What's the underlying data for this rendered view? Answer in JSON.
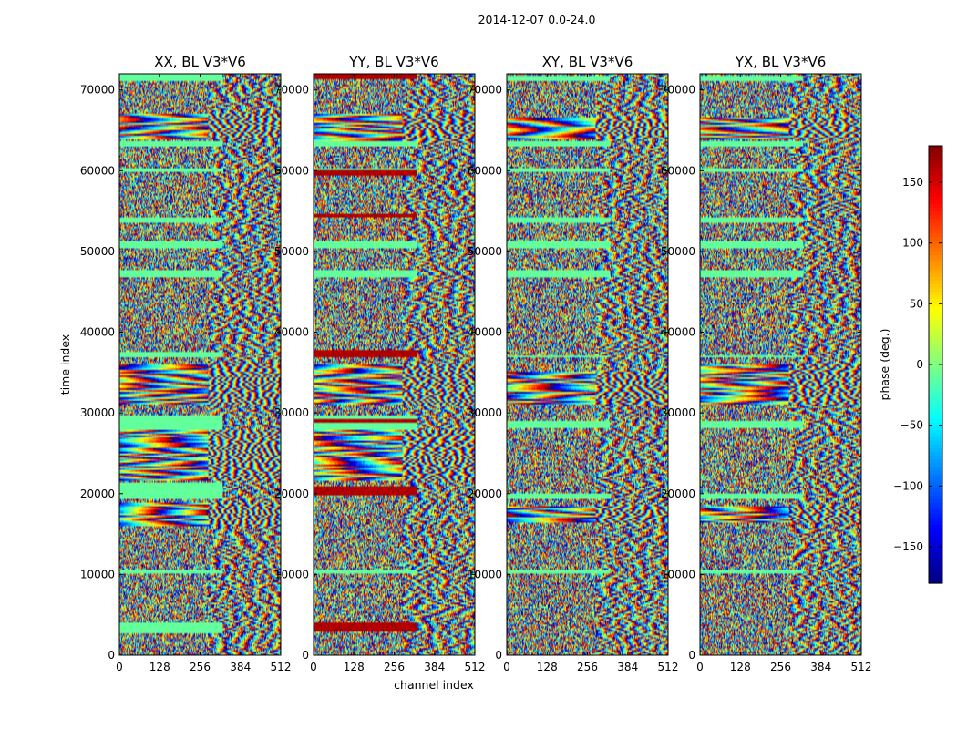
{
  "chart_data": {
    "type": "heatmap",
    "suptitle": "2014-12-07 0.0-24.0",
    "xlabel": "channel index",
    "ylabel": "time index",
    "x_ticks": [
      "0",
      "128",
      "256",
      "384",
      "512"
    ],
    "y_ticks": [
      "0",
      "10000",
      "20000",
      "30000",
      "40000",
      "50000",
      "60000",
      "70000"
    ],
    "xlim": [
      0,
      512
    ],
    "ylim": [
      0,
      72000
    ],
    "value_range": [
      -180,
      180
    ],
    "colormap": "jet",
    "panels": [
      {
        "title": "XX, BL V3*V6",
        "flat_bands": [
          [
            2800,
            4000
          ],
          [
            10100,
            10600
          ],
          [
            19400,
            21300
          ],
          [
            28000,
            29600
          ],
          [
            36800,
            37600
          ],
          [
            46800,
            47600
          ],
          [
            50400,
            51200
          ],
          [
            53500,
            54300
          ],
          [
            59800,
            60400
          ],
          [
            63000,
            63600
          ],
          [
            71000,
            72000
          ]
        ],
        "fringe_bands": [
          [
            16000,
            19000
          ],
          [
            21500,
            28000
          ],
          [
            31000,
            36000
          ],
          [
            64000,
            67000
          ]
        ]
      },
      {
        "title": "YY, BL V3*V6",
        "flat_bands": [
          [
            10100,
            10600
          ],
          [
            28000,
            29600
          ],
          [
            46800,
            47600
          ],
          [
            50400,
            51200
          ],
          [
            59800,
            60400
          ],
          [
            63000,
            63600
          ]
        ],
        "red_bands": [
          [
            3000,
            4000
          ],
          [
            19700,
            21000
          ],
          [
            28800,
            29300
          ],
          [
            36800,
            37900
          ],
          [
            54300,
            54600
          ],
          [
            59500,
            60100
          ],
          [
            71400,
            72000
          ]
        ],
        "fringe_bands": [
          [
            21500,
            28000
          ],
          [
            31000,
            36000
          ],
          [
            63500,
            67000
          ]
        ]
      },
      {
        "title": "XY, BL V3*V6",
        "flat_bands": [
          [
            10100,
            10600
          ],
          [
            19400,
            20000
          ],
          [
            28200,
            29000
          ],
          [
            36800,
            37200
          ],
          [
            46800,
            47600
          ],
          [
            50400,
            51200
          ],
          [
            53500,
            54300
          ],
          [
            59800,
            60400
          ],
          [
            63000,
            63600
          ],
          [
            71000,
            71800
          ]
        ],
        "fringe_bands": [
          [
            16500,
            18500
          ],
          [
            31000,
            35000
          ],
          [
            64000,
            66500
          ]
        ]
      },
      {
        "title": "YX, BL V3*V6",
        "flat_bands": [
          [
            10100,
            10600
          ],
          [
            19400,
            20000
          ],
          [
            28200,
            29000
          ],
          [
            36800,
            37200
          ],
          [
            46800,
            47600
          ],
          [
            50400,
            51200
          ],
          [
            53500,
            54300
          ],
          [
            59800,
            60400
          ],
          [
            63000,
            63600
          ],
          [
            71000,
            71800
          ]
        ],
        "fringe_bands": [
          [
            16500,
            18500
          ],
          [
            31000,
            36000
          ],
          [
            64000,
            66500
          ]
        ]
      }
    ],
    "colorbar": {
      "label": "phase (deg.)",
      "ticks": [
        "150",
        "100",
        "50",
        "0",
        "−50",
        "−100",
        "−150"
      ],
      "tick_values": [
        150,
        100,
        50,
        0,
        -50,
        -100,
        -150
      ],
      "min": -180,
      "max": 180
    }
  }
}
